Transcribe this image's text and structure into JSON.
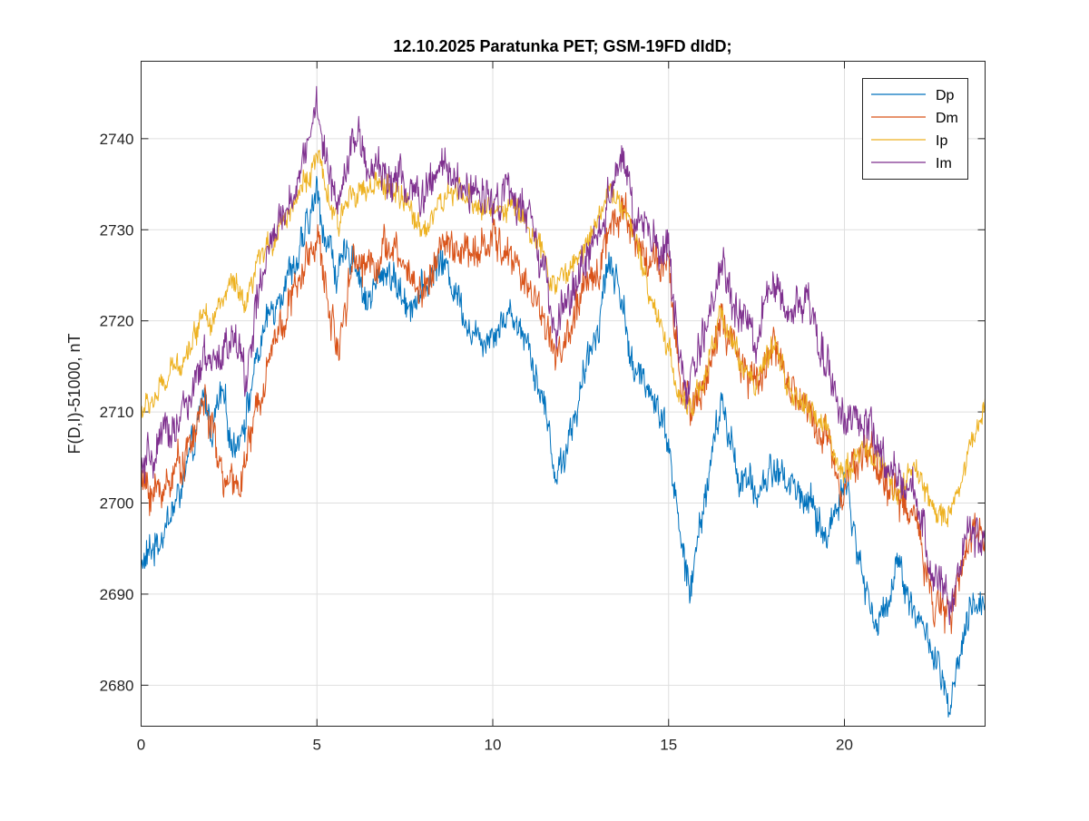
{
  "chart_data": {
    "type": "line",
    "title": "12.10.2025  Paratunka PET; GSM-19FD dIdD;",
    "xlabel": "",
    "ylabel": "F(D,I)-51000, nT",
    "xlim": [
      0,
      24
    ],
    "ylim": [
      2675.5,
      2748.5
    ],
    "xticks": [
      0,
      5,
      10,
      15,
      20
    ],
    "yticks": [
      2680,
      2690,
      2700,
      2710,
      2720,
      2730,
      2740
    ],
    "grid": true,
    "legend_position": "top-right",
    "x": [
      0,
      0.5,
      1,
      1.5,
      1.8,
      2,
      2.3,
      2.6,
      3,
      3.3,
      3.6,
      4,
      4.5,
      5,
      5.2,
      5.6,
      6,
      6.4,
      7,
      7.5,
      8,
      8.5,
      9,
      9.5,
      10,
      10.5,
      11,
      11.5,
      11.8,
      12,
      12.5,
      13,
      13.3,
      13.7,
      14,
      14.5,
      15,
      15.3,
      15.6,
      15.8,
      16,
      16.5,
      17,
      17.5,
      18,
      18.5,
      19,
      19.5,
      20,
      20.5,
      21,
      21.5,
      22,
      22.5,
      23,
      23.5,
      24
    ],
    "series": [
      {
        "name": "Dp",
        "color": "#0072BD",
        "noise": 1.6,
        "values": [
          2693,
          2696,
          2700,
          2706,
          2712,
          2708,
          2712,
          2706,
          2710,
          2716,
          2720,
          2724,
          2727,
          2734,
          2730,
          2725,
          2728,
          2722,
          2726,
          2722,
          2723,
          2727,
          2723,
          2718,
          2719,
          2721,
          2718,
          2710,
          2703,
          2705,
          2712,
          2720,
          2727,
          2722,
          2714,
          2713,
          2707,
          2697,
          2690,
          2695,
          2700,
          2711,
          2703,
          2701,
          2704,
          2702,
          2700,
          2696,
          2703,
          2692,
          2686,
          2694,
          2688,
          2684,
          2677,
          2687,
          2690
        ]
      },
      {
        "name": "Dm",
        "color": "#D95319",
        "noise": 1.8,
        "values": [
          2702,
          2701,
          2704,
          2707,
          2712,
          2708,
          2703,
          2701,
          2705,
          2710,
          2716,
          2720,
          2724,
          2730,
          2724,
          2717,
          2727,
          2726,
          2728,
          2726,
          2723,
          2728,
          2728,
          2727,
          2729,
          2727,
          2724,
          2720,
          2716,
          2717,
          2722,
          2726,
          2730,
          2733,
          2729,
          2727,
          2725,
          2714,
          2710,
          2712,
          2713,
          2720,
          2715,
          2713,
          2718,
          2712,
          2710,
          2707,
          2702,
          2706,
          2704,
          2700,
          2699,
          2690,
          2687,
          2695,
          2698
        ]
      },
      {
        "name": "Ip",
        "color": "#EDB120",
        "noise": 1.2,
        "values": [
          2710,
          2712,
          2715,
          2718,
          2722,
          2720,
          2722,
          2724,
          2721,
          2726,
          2728,
          2731,
          2734,
          2738,
          2735,
          2730,
          2735,
          2734,
          2735,
          2733,
          2730,
          2733,
          2734,
          2733,
          2732,
          2733,
          2731,
          2726,
          2724,
          2725,
          2727,
          2732,
          2734,
          2733,
          2729,
          2723,
          2717,
          2712,
          2710,
          2712,
          2713,
          2721,
          2716,
          2713,
          2717,
          2712,
          2710,
          2708,
          2703,
          2706,
          2705,
          2701,
          2704,
          2699,
          2699,
          2705,
          2711
        ]
      },
      {
        "name": "Im",
        "color": "#7E2F8E",
        "noise": 1.9,
        "values": [
          2703,
          2706,
          2709,
          2712,
          2716,
          2714,
          2717,
          2718,
          2714,
          2722,
          2727,
          2731,
          2736,
          2744,
          2738,
          2733,
          2741,
          2737,
          2736,
          2735,
          2733,
          2737,
          2735,
          2734,
          2734,
          2734,
          2731,
          2725,
          2718,
          2721,
          2725,
          2730,
          2734,
          2739,
          2731,
          2729,
          2727,
          2716,
          2712,
          2715,
          2718,
          2727,
          2720,
          2718,
          2724,
          2721,
          2722,
          2716,
          2709,
          2709,
          2705,
          2702,
          2701,
          2693,
          2688,
          2697,
          2696
        ]
      }
    ]
  }
}
